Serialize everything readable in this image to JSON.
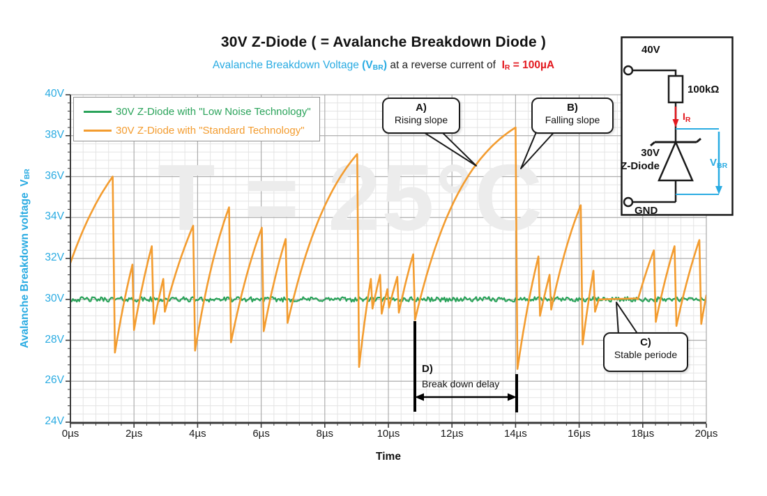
{
  "title": "30V Z-Diode ( = Avalanche Breakdown Diode )",
  "subtitle": {
    "cyan_text": "Avalanche Breakdown Voltage ",
    "vbr_open": "(V",
    "vbr_sub": "BR",
    "vbr_close": ")",
    "black_text": " at a reverse current of  ",
    "ir_prefix": "I",
    "ir_sub": "R",
    "ir_suffix": " = 100µA"
  },
  "watermark": "T = 25°C",
  "legend": {
    "items": [
      {
        "label": "30V Z-Diode with \"Low Noise Technology\"",
        "color": "#2aa35a"
      },
      {
        "label": "30V Z-Diode with \"Standard Technology\"",
        "color": "#f39c2f"
      }
    ]
  },
  "axes": {
    "x": {
      "label": "Time",
      "ticks": [
        "0µs",
        "2µs",
        "4µs",
        "6µs",
        "8µs",
        "10µs",
        "12µs",
        "14µs",
        "16µs",
        "18µs",
        "20µs"
      ]
    },
    "y": {
      "label": "Avalanche Breakdown voltage",
      "symbol": "V",
      "symbol_sub": "BR",
      "ticks": [
        "40V",
        "38V",
        "36V",
        "34V",
        "32V",
        "30V",
        "28V",
        "26V",
        "24V"
      ]
    }
  },
  "annotations": {
    "a": {
      "label": "A)",
      "text": "Rising slope"
    },
    "b": {
      "label": "B)",
      "text": "Falling slope"
    },
    "c": {
      "label": "C)",
      "text": "Stable periode"
    },
    "d": {
      "label": "D)",
      "text": "Break down delay"
    }
  },
  "circuit": {
    "supply": "40V",
    "resistor": "100kΩ",
    "current_prefix": "I",
    "current_sub": "R",
    "diode_line1": "30V",
    "diode_line2": "Z-Diode",
    "vbr_prefix": "V",
    "vbr_sub": "BR",
    "ground": "GND"
  },
  "colors": {
    "cyan": "#29abe2",
    "green": "#2aa35a",
    "orange": "#f39c2f",
    "red": "#e3191f",
    "grid_major": "#adadad",
    "grid_minor": "#e4e4e4",
    "axis": "#3a3a3a",
    "frame": "#999999",
    "watermark": "#ececec"
  },
  "chart_data": {
    "type": "line",
    "title": "30V Z-Diode ( = Avalanche Breakdown Diode )",
    "subtitle": "Avalanche Breakdown Voltage (VBR) at a reverse current of IR = 100µA",
    "xlabel": "Time (µs)",
    "ylabel": "Avalanche Breakdown voltage VBR (V)",
    "xlim": [
      0,
      20
    ],
    "ylim": [
      24,
      40
    ],
    "x_major_step": 2,
    "y_major_step": 2,
    "x_minor_step": 0.4,
    "y_minor_step": 0.4,
    "grid": true,
    "legend_position": "top-left",
    "series": [
      {
        "name": "30V Z-Diode with \"Low Noise Technology\"",
        "color": "#2aa35a",
        "shape": "flat-noise",
        "level_v": 30.0,
        "noise_amp_v": 0.12
      },
      {
        "name": "30V Z-Diode with \"Standard Technology\"",
        "color": "#f39c2f",
        "shape": "sawtooth-exponential",
        "asymptote_v": 40,
        "teeth": [
          {
            "t0": -0.7,
            "v0": 28.0,
            "t1": 1.33,
            "v1": 36.0
          },
          {
            "t0": 1.4,
            "v0": 27.4,
            "t1": 1.95,
            "v1": 31.7
          },
          {
            "t0": 2.0,
            "v0": 28.5,
            "t1": 2.56,
            "v1": 32.6
          },
          {
            "t0": 2.62,
            "v0": 28.8,
            "t1": 2.92,
            "v1": 31.0
          },
          {
            "t0": 2.97,
            "v0": 29.4,
            "t1": 3.86,
            "v1": 33.6
          },
          {
            "t0": 3.92,
            "v0": 27.5,
            "t1": 4.99,
            "v1": 34.5
          },
          {
            "t0": 5.05,
            "v0": 27.9,
            "t1": 6.02,
            "v1": 33.5
          },
          {
            "t0": 6.08,
            "v0": 28.45,
            "t1": 6.77,
            "v1": 32.95
          },
          {
            "t0": 6.83,
            "v0": 28.85,
            "t1": 9.02,
            "v1": 37.1
          },
          {
            "t0": 9.08,
            "v0": 26.7,
            "t1": 9.45,
            "v1": 31.0
          },
          {
            "t0": 9.5,
            "v0": 29.55,
            "t1": 9.74,
            "v1": 31.2
          },
          {
            "t0": 9.79,
            "v0": 29.3,
            "t1": 9.97,
            "v1": 30.5
          },
          {
            "t0": 10.02,
            "v0": 29.6,
            "t1": 10.28,
            "v1": 31.1
          },
          {
            "t0": 10.33,
            "v0": 29.35,
            "t1": 10.78,
            "v1": 32.2
          },
          {
            "t0": 10.84,
            "v0": 29.0,
            "t1": 14.0,
            "v1": 38.4
          },
          {
            "t0": 14.06,
            "v0": 26.6,
            "t1": 14.72,
            "v1": 32.1
          },
          {
            "t0": 14.77,
            "v0": 29.2,
            "t1": 15.07,
            "v1": 31.2
          },
          {
            "t0": 15.12,
            "v0": 29.5,
            "t1": 16.05,
            "v1": 34.6
          },
          {
            "t0": 16.11,
            "v0": 27.8,
            "t1": 16.45,
            "v1": 31.4
          },
          {
            "t0": 16.5,
            "v0": 29.4,
            "t1": 16.62,
            "v1": 30.0
          },
          {
            "t0": 16.62,
            "v0": 30.0,
            "t1": 17.85,
            "v1": 30.05
          },
          {
            "t0": 17.85,
            "v0": 30.0,
            "t1": 18.35,
            "v1": 32.4
          },
          {
            "t0": 18.41,
            "v0": 28.9,
            "t1": 19.0,
            "v1": 32.6
          },
          {
            "t0": 19.06,
            "v0": 28.7,
            "t1": 19.78,
            "v1": 32.9
          },
          {
            "t0": 19.84,
            "v0": 28.8,
            "t1": 20.0,
            "v1": 30.2
          }
        ]
      }
    ],
    "annotations": [
      {
        "id": "A",
        "text": "Rising slope",
        "points_to_t": 12.8,
        "points_to_v": 36.5
      },
      {
        "id": "B",
        "text": "Falling slope",
        "points_to_t": 14.05,
        "points_to_v": 36.3
      },
      {
        "id": "C",
        "text": "Stable periode",
        "points_to_t": 17.2,
        "points_to_v": 30.0
      },
      {
        "id": "D",
        "text": "Break down delay",
        "from_t": 10.84,
        "to_t": 14.0
      }
    ]
  }
}
